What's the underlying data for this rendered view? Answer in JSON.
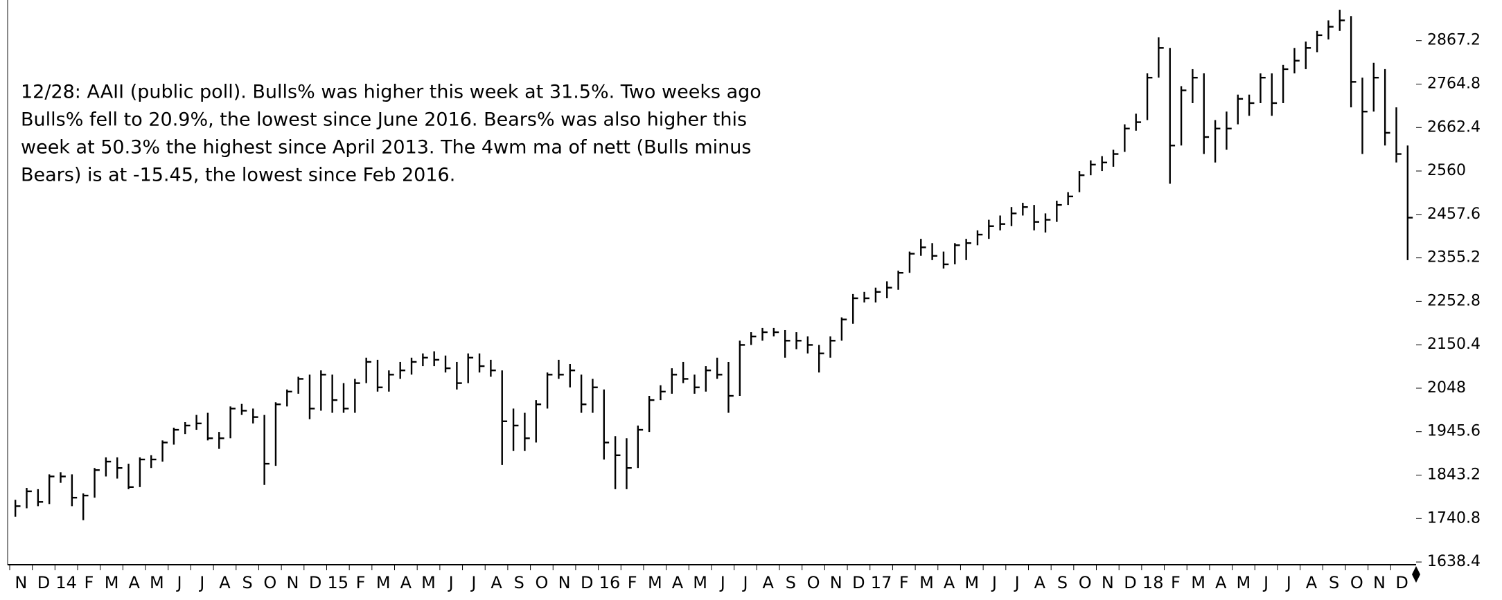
{
  "chart_data": {
    "type": "ohlc",
    "annotation": [
      "12/28: AAII (public poll). Bulls% was higher this week at 31.5%. Two weeks ago",
      "Bulls% fell to 20.9%, the lowest since June 2016. Bears% was also higher this",
      "week at 50.3% the highest since April 2013. The 4wm ma of nett (Bulls minus",
      "Bears) is at -15.45, the lowest since Feb 2016."
    ],
    "months": [
      "N",
      "D",
      "14",
      "F",
      "M",
      "A",
      "M",
      "J",
      "J",
      "A",
      "S",
      "O",
      "N",
      "D",
      "15",
      "F",
      "M",
      "A",
      "M",
      "J",
      "J",
      "A",
      "S",
      "O",
      "N",
      "D",
      "16",
      "F",
      "M",
      "A",
      "M",
      "J",
      "J",
      "A",
      "S",
      "O",
      "N",
      "D",
      "17",
      "F",
      "M",
      "A",
      "M",
      "J",
      "J",
      "A",
      "S",
      "O",
      "N",
      "D",
      "18",
      "F",
      "M",
      "A",
      "M",
      "J",
      "J",
      "A",
      "S",
      "O",
      "N",
      "D"
    ],
    "high": [
      1785,
      1813,
      1810,
      1845,
      1850,
      1845,
      1800,
      1860,
      1885,
      1885,
      1870,
      1885,
      1890,
      1925,
      1955,
      1968,
      1985,
      1990,
      1945,
      2005,
      2011,
      2000,
      1985,
      2015,
      2045,
      2075,
      2080,
      2090,
      2080,
      2060,
      2070,
      2120,
      2115,
      2090,
      2110,
      2120,
      2130,
      2135,
      2125,
      2110,
      2130,
      2130,
      2115,
      2090,
      2000,
      1990,
      2020,
      2085,
      2115,
      2105,
      2080,
      2070,
      2045,
      1935,
      1930,
      1960,
      2030,
      2055,
      2095,
      2110,
      2080,
      2100,
      2120,
      2110,
      2160,
      2180,
      2190,
      2190,
      2185,
      2180,
      2170,
      2150,
      2170,
      2215,
      2270,
      2275,
      2285,
      2300,
      2325,
      2370,
      2400,
      2390,
      2370,
      2390,
      2400,
      2420,
      2445,
      2455,
      2475,
      2485,
      2480,
      2460,
      2490,
      2510,
      2560,
      2585,
      2595,
      2610,
      2670,
      2695,
      2790,
      2875,
      2850,
      2760,
      2800,
      2790,
      2680,
      2700,
      2740,
      2740,
      2790,
      2790,
      2810,
      2850,
      2865,
      2890,
      2915,
      2940,
      2925,
      2780,
      2815,
      2800,
      2710,
      2620
    ],
    "low": [
      1745,
      1765,
      1770,
      1775,
      1825,
      1770,
      1737,
      1790,
      1840,
      1835,
      1810,
      1815,
      1860,
      1875,
      1915,
      1940,
      1950,
      1925,
      1905,
      1930,
      1985,
      1965,
      1820,
      1865,
      2005,
      2035,
      1975,
      1995,
      1990,
      1990,
      1990,
      2060,
      2040,
      2040,
      2070,
      2080,
      2100,
      2100,
      2085,
      2045,
      2060,
      2085,
      2075,
      1867,
      1900,
      1900,
      1920,
      2000,
      2070,
      2050,
      1990,
      1990,
      1880,
      1810,
      1810,
      1860,
      1945,
      2020,
      2035,
      2060,
      2035,
      2040,
      2070,
      1990,
      2030,
      2150,
      2160,
      2170,
      2120,
      2140,
      2130,
      2085,
      2120,
      2160,
      2200,
      2250,
      2250,
      2260,
      2280,
      2320,
      2360,
      2350,
      2330,
      2340,
      2350,
      2385,
      2400,
      2420,
      2430,
      2455,
      2420,
      2415,
      2440,
      2480,
      2510,
      2550,
      2560,
      2570,
      2605,
      2655,
      2680,
      2780,
      2530,
      2620,
      2720,
      2600,
      2580,
      2610,
      2670,
      2690,
      2720,
      2690,
      2720,
      2790,
      2800,
      2840,
      2870,
      2890,
      2710,
      2600,
      2700,
      2620,
      2580,
      2350
    ],
    "close": [
      1770,
      1805,
      1780,
      1840,
      1840,
      1790,
      1795,
      1855,
      1875,
      1860,
      1815,
      1880,
      1880,
      1920,
      1950,
      1960,
      1965,
      1930,
      1930,
      2000,
      1995,
      1980,
      1870,
      2010,
      2040,
      2070,
      2000,
      2080,
      2020,
      2000,
      2060,
      2110,
      2050,
      2080,
      2090,
      2110,
      2120,
      2115,
      2095,
      2060,
      2120,
      2100,
      2090,
      1970,
      1960,
      1930,
      2010,
      2080,
      2080,
      2090,
      2010,
      2050,
      1920,
      1890,
      1860,
      1950,
      2020,
      2040,
      2080,
      2070,
      2050,
      2090,
      2080,
      2030,
      2150,
      2170,
      2180,
      2180,
      2160,
      2160,
      2150,
      2130,
      2160,
      2210,
      2260,
      2260,
      2275,
      2285,
      2320,
      2365,
      2380,
      2360,
      2340,
      2385,
      2390,
      2410,
      2430,
      2435,
      2460,
      2475,
      2440,
      2445,
      2480,
      2500,
      2550,
      2575,
      2580,
      2600,
      2660,
      2675,
      2780,
      2850,
      2620,
      2750,
      2780,
      2640,
      2660,
      2660,
      2730,
      2720,
      2780,
      2720,
      2800,
      2820,
      2850,
      2880,
      2900,
      2915,
      2770,
      2700,
      2780,
      2650,
      2600,
      2450
    ],
    "color": "#000000",
    "ylim": [
      1632,
      2963
    ],
    "yticks": [
      1638.4,
      1740.8,
      1843.2,
      1945.6,
      2048,
      2150.4,
      2252.8,
      2355.2,
      2457.6,
      2560,
      2662.4,
      2764.8,
      2867.2
    ]
  }
}
